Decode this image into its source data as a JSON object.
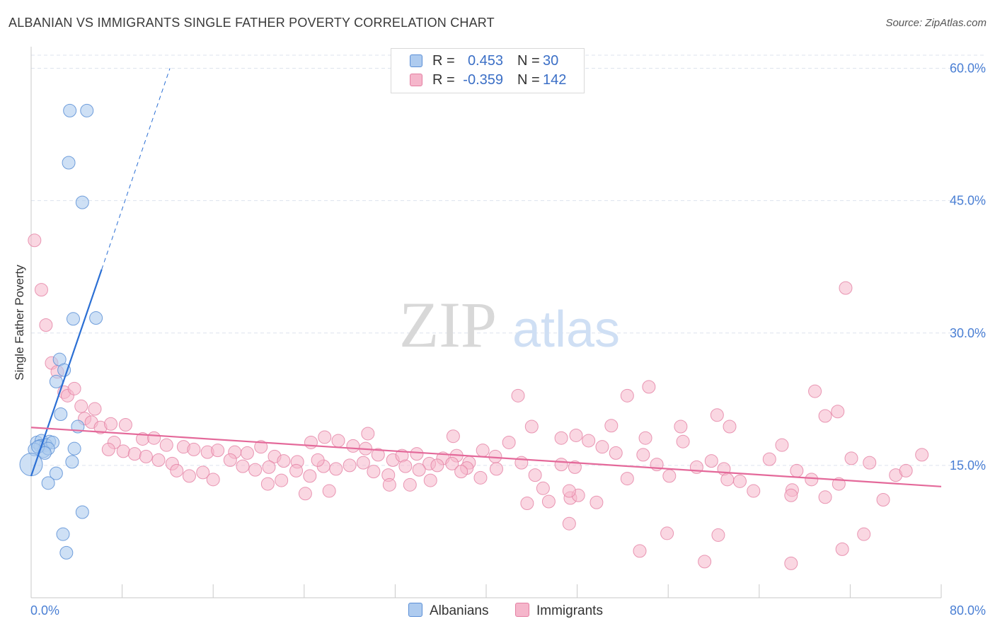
{
  "header": {
    "title": "ALBANIAN VS IMMIGRANTS SINGLE FATHER POVERTY CORRELATION CHART",
    "source": "Source: ZipAtlas.com"
  },
  "legend": {
    "rows": [
      {
        "r_label": "R =",
        "r_value": "0.453",
        "n_label": "N =",
        "n_value": "30"
      },
      {
        "r_label": "R =",
        "r_value": "-0.359",
        "n_label": "N =",
        "n_value": "142"
      }
    ]
  },
  "bottom_legend": {
    "albanians": "Albanians",
    "immigrants": "Immigrants"
  },
  "watermark": {
    "zip": "ZIP",
    "atlas": "atlas"
  },
  "colors": {
    "albanian_fill": "#aecbef",
    "albanian_stroke": "#5b8fd6",
    "albanian_line": "#2b6fd4",
    "immigrant_fill": "#f5b6cb",
    "immigrant_stroke": "#e47fa2",
    "immigrant_line": "#e4699a",
    "tick_label": "#4a7fd4",
    "grid": "#dde3ee"
  },
  "chart_data": {
    "type": "scatter",
    "title": "ALBANIAN VS IMMIGRANTS SINGLE FATHER POVERTY CORRELATION CHART",
    "xlabel": "",
    "ylabel": "Single Father Poverty",
    "xlim": [
      0,
      80
    ],
    "ylim": [
      0,
      60.0
    ],
    "x_tick_labels": [
      "0.0%",
      "80.0%"
    ],
    "y_ticks": [
      15,
      30,
      45,
      60
    ],
    "y_tick_labels": [
      "15.0%",
      "30.0%",
      "45.0%",
      "60.0%"
    ],
    "series": [
      {
        "name": "Albanians",
        "r": 0.453,
        "n": 30,
        "trend": {
          "x0": 0,
          "y0": 13.8,
          "x1": 6.2,
          "y1": 37.2,
          "dash_to_x": 12.2,
          "dash_to_y": 60.0
        },
        "points": [
          [
            3.4,
            55.2
          ],
          [
            4.9,
            55.2
          ],
          [
            3.3,
            49.3
          ],
          [
            4.5,
            44.8
          ],
          [
            3.7,
            31.6
          ],
          [
            5.7,
            31.7
          ],
          [
            2.5,
            27.0
          ],
          [
            2.9,
            25.8
          ],
          [
            2.2,
            24.5
          ],
          [
            2.6,
            20.8
          ],
          [
            4.1,
            19.4
          ],
          [
            0.5,
            17.6
          ],
          [
            0.9,
            17.8
          ],
          [
            1.6,
            17.7
          ],
          [
            0.8,
            17.2
          ],
          [
            1.3,
            17.3
          ],
          [
            1.9,
            17.6
          ],
          [
            1.1,
            16.6
          ],
          [
            1.5,
            16.9
          ],
          [
            0.3,
            16.8
          ],
          [
            3.8,
            16.9
          ],
          [
            0.0,
            15.1
          ],
          [
            3.6,
            15.4
          ],
          [
            2.2,
            14.1
          ],
          [
            1.5,
            13.0
          ],
          [
            4.5,
            9.7
          ],
          [
            2.8,
            7.2
          ],
          [
            3.1,
            5.1
          ],
          [
            0.6,
            17.1
          ],
          [
            1.2,
            16.4
          ]
        ]
      },
      {
        "name": "Immigrants",
        "r": -0.359,
        "n": 142,
        "trend": {
          "x0": 0,
          "y0": 19.3,
          "x1": 80,
          "y1": 12.6
        },
        "points": [
          [
            0.3,
            40.5
          ],
          [
            0.9,
            34.9
          ],
          [
            1.3,
            30.9
          ],
          [
            1.8,
            26.6
          ],
          [
            2.3,
            25.6
          ],
          [
            2.9,
            23.3
          ],
          [
            3.2,
            22.9
          ],
          [
            3.8,
            23.7
          ],
          [
            4.4,
            21.7
          ],
          [
            5.6,
            21.4
          ],
          [
            4.7,
            20.3
          ],
          [
            5.3,
            19.9
          ],
          [
            6.1,
            19.3
          ],
          [
            7.0,
            19.7
          ],
          [
            8.3,
            19.6
          ],
          [
            7.3,
            17.6
          ],
          [
            9.8,
            18.0
          ],
          [
            10.8,
            18.1
          ],
          [
            11.9,
            17.3
          ],
          [
            6.8,
            16.8
          ],
          [
            8.1,
            16.6
          ],
          [
            9.1,
            16.3
          ],
          [
            10.1,
            16.0
          ],
          [
            11.2,
            15.6
          ],
          [
            12.4,
            15.2
          ],
          [
            13.4,
            17.1
          ],
          [
            14.3,
            16.8
          ],
          [
            15.5,
            16.5
          ],
          [
            16.4,
            16.7
          ],
          [
            17.9,
            16.5
          ],
          [
            19.0,
            16.4
          ],
          [
            20.2,
            17.1
          ],
          [
            21.4,
            16.0
          ],
          [
            22.2,
            15.5
          ],
          [
            23.4,
            15.4
          ],
          [
            24.6,
            17.6
          ],
          [
            25.8,
            18.2
          ],
          [
            27.0,
            17.8
          ],
          [
            28.3,
            17.2
          ],
          [
            29.4,
            16.9
          ],
          [
            30.5,
            16.2
          ],
          [
            31.8,
            15.6
          ],
          [
            32.6,
            16.1
          ],
          [
            33.9,
            16.3
          ],
          [
            35.0,
            15.2
          ],
          [
            36.2,
            15.8
          ],
          [
            37.4,
            16.1
          ],
          [
            38.5,
            15.3
          ],
          [
            39.7,
            16.7
          ],
          [
            40.8,
            16.0
          ],
          [
            12.8,
            14.4
          ],
          [
            13.9,
            13.8
          ],
          [
            15.1,
            14.2
          ],
          [
            16.0,
            13.4
          ],
          [
            17.5,
            15.6
          ],
          [
            18.6,
            14.9
          ],
          [
            19.7,
            14.5
          ],
          [
            20.9,
            14.8
          ],
          [
            22.0,
            13.3
          ],
          [
            23.3,
            14.4
          ],
          [
            24.5,
            13.8
          ],
          [
            25.7,
            14.9
          ],
          [
            26.8,
            14.6
          ],
          [
            28.0,
            15.0
          ],
          [
            29.2,
            15.3
          ],
          [
            30.1,
            14.3
          ],
          [
            31.4,
            13.9
          ],
          [
            32.9,
            14.9
          ],
          [
            34.1,
            14.5
          ],
          [
            35.7,
            15.0
          ],
          [
            37.0,
            15.2
          ],
          [
            38.3,
            14.7
          ],
          [
            39.5,
            13.6
          ],
          [
            40.9,
            14.6
          ],
          [
            26.2,
            12.1
          ],
          [
            31.5,
            12.8
          ],
          [
            35.1,
            13.3
          ],
          [
            24.1,
            11.8
          ],
          [
            20.8,
            12.9
          ],
          [
            42.0,
            17.6
          ],
          [
            43.1,
            15.3
          ],
          [
            44.3,
            13.9
          ],
          [
            45.5,
            10.9
          ],
          [
            46.6,
            15.1
          ],
          [
            47.8,
            14.8
          ],
          [
            49.0,
            17.8
          ],
          [
            50.2,
            17.1
          ],
          [
            51.4,
            16.4
          ],
          [
            52.4,
            13.5
          ],
          [
            53.8,
            16.2
          ],
          [
            55.0,
            15.1
          ],
          [
            56.1,
            13.8
          ],
          [
            57.3,
            17.7
          ],
          [
            58.5,
            14.8
          ],
          [
            59.8,
            15.5
          ],
          [
            60.9,
            14.6
          ],
          [
            62.3,
            13.2
          ],
          [
            63.5,
            12.1
          ],
          [
            64.9,
            15.7
          ],
          [
            66.0,
            17.3
          ],
          [
            67.3,
            14.4
          ],
          [
            68.6,
            13.4
          ],
          [
            69.8,
            11.4
          ],
          [
            71.0,
            12.9
          ],
          [
            72.1,
            15.8
          ],
          [
            73.7,
            15.3
          ],
          [
            74.9,
            11.1
          ],
          [
            76.0,
            13.9
          ],
          [
            76.9,
            14.4
          ],
          [
            78.3,
            16.2
          ],
          [
            42.8,
            22.9
          ],
          [
            52.4,
            22.9
          ],
          [
            54.3,
            23.9
          ],
          [
            60.3,
            20.7
          ],
          [
            61.4,
            19.4
          ],
          [
            57.1,
            19.4
          ],
          [
            51.0,
            19.5
          ],
          [
            68.9,
            23.4
          ],
          [
            69.8,
            20.6
          ],
          [
            70.9,
            21.1
          ],
          [
            46.6,
            18.1
          ],
          [
            47.9,
            18.4
          ],
          [
            54.0,
            18.1
          ],
          [
            43.6,
            10.7
          ],
          [
            47.4,
            11.3
          ],
          [
            48.1,
            11.6
          ],
          [
            47.3,
            8.4
          ],
          [
            49.7,
            10.8
          ],
          [
            45.0,
            12.4
          ],
          [
            61.2,
            13.4
          ],
          [
            37.1,
            18.3
          ],
          [
            29.6,
            18.6
          ],
          [
            47.3,
            12.1
          ],
          [
            66.9,
            12.2
          ],
          [
            66.8,
            11.6
          ],
          [
            71.6,
            35.1
          ],
          [
            53.5,
            5.3
          ],
          [
            55.9,
            7.3
          ],
          [
            59.2,
            4.1
          ],
          [
            60.4,
            7.1
          ],
          [
            66.8,
            3.9
          ],
          [
            71.3,
            5.5
          ],
          [
            73.2,
            7.2
          ],
          [
            44.0,
            19.4
          ],
          [
            37.8,
            14.3
          ],
          [
            25.2,
            15.6
          ],
          [
            33.3,
            12.8
          ]
        ]
      }
    ]
  }
}
